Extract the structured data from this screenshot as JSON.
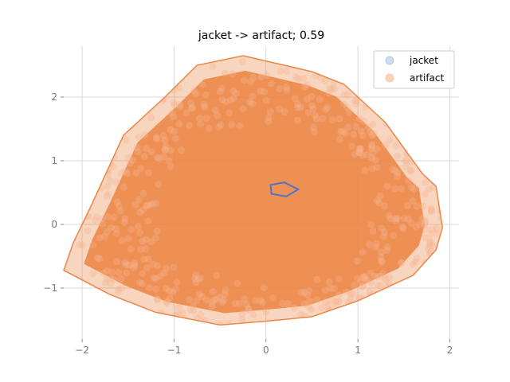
{
  "chart_data": {
    "type": "scatter",
    "title": "jacket -> artifact; 0.59",
    "xlabel": "",
    "ylabel": "",
    "xlim": [
      -2.2,
      2.1
    ],
    "ylim": [
      -1.8,
      2.8
    ],
    "x_ticks": [
      -2,
      -1,
      0,
      1,
      2
    ],
    "x_tick_labels": [
      "−2",
      "−1",
      "0",
      "1",
      "2"
    ],
    "y_ticks": [
      -1,
      0,
      1,
      2
    ],
    "y_tick_labels": [
      "−1",
      "0",
      "1",
      "2"
    ],
    "grid": true,
    "legend_position": "top-right",
    "series": [
      {
        "name": "jacket",
        "color": "#4e73c9",
        "marker_color": "#aec3e8",
        "hull": [
          [
            0.05,
            0.62
          ],
          [
            0.2,
            0.66
          ],
          [
            0.35,
            0.55
          ],
          [
            0.22,
            0.44
          ],
          [
            0.06,
            0.48
          ]
        ]
      },
      {
        "name": "artifact",
        "color": "#ec8748",
        "marker_color": "#f5b58e",
        "hull": [
          [
            -0.25,
            2.65
          ],
          [
            0.5,
            2.4
          ],
          [
            0.85,
            2.2
          ],
          [
            1.3,
            1.6
          ],
          [
            1.7,
            0.8
          ],
          [
            1.85,
            0.6
          ],
          [
            1.92,
            -0.05
          ],
          [
            1.85,
            -0.4
          ],
          [
            1.6,
            -0.8
          ],
          [
            1.0,
            -1.2
          ],
          [
            0.5,
            -1.45
          ],
          [
            0.0,
            -1.52
          ],
          [
            -0.5,
            -1.58
          ],
          [
            -1.2,
            -1.38
          ],
          [
            -1.7,
            -1.1
          ],
          [
            -2.2,
            -0.72
          ],
          [
            -2.1,
            -0.3
          ],
          [
            -1.9,
            0.3
          ],
          [
            -1.55,
            1.4
          ],
          [
            -1.1,
            2.0
          ],
          [
            -0.75,
            2.5
          ]
        ]
      }
    ]
  }
}
